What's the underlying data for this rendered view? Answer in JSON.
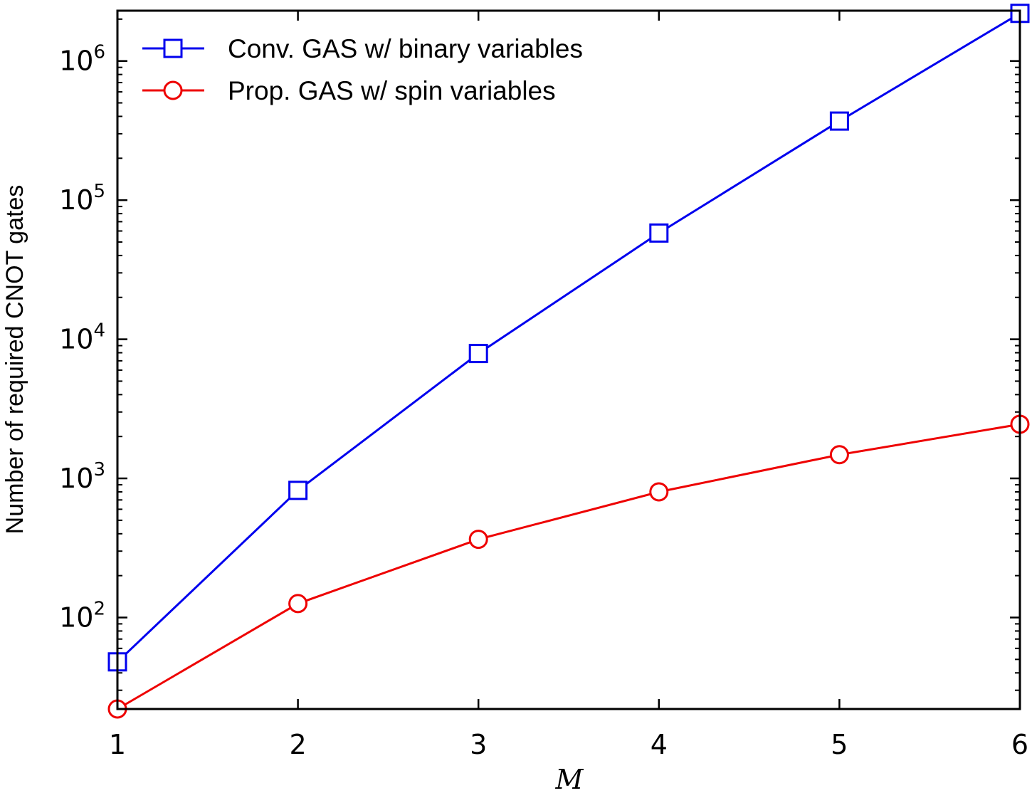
{
  "chart_data": {
    "type": "line",
    "x": [
      1,
      2,
      3,
      4,
      5,
      6
    ],
    "xlabel": "M",
    "ylabel": "Number of required CNOT gates",
    "yscale": "log",
    "xlim": [
      1,
      6
    ],
    "ylim": [
      22,
      2300000
    ],
    "x_ticks": [
      1,
      2,
      3,
      4,
      5,
      6
    ],
    "y_ticks": [
      {
        "value": 100,
        "base": "10",
        "exp": "2"
      },
      {
        "value": 1000,
        "base": "10",
        "exp": "3"
      },
      {
        "value": 10000,
        "base": "10",
        "exp": "4"
      },
      {
        "value": 100000,
        "base": "10",
        "exp": "5"
      },
      {
        "value": 1000000,
        "base": "10",
        "exp": "6"
      }
    ],
    "grid": false,
    "legend_position": "top-left",
    "series": [
      {
        "name": "Conv. GAS w/ binary variables",
        "color": "#0000ee",
        "marker": "square",
        "values": [
          48,
          820,
          7900,
          58000,
          370000,
          2200000
        ]
      },
      {
        "name": "Prop. GAS w/ spin variables",
        "color": "#ee0000",
        "marker": "circle",
        "values": [
          22,
          126,
          365,
          800,
          1480,
          2450
        ]
      }
    ]
  }
}
